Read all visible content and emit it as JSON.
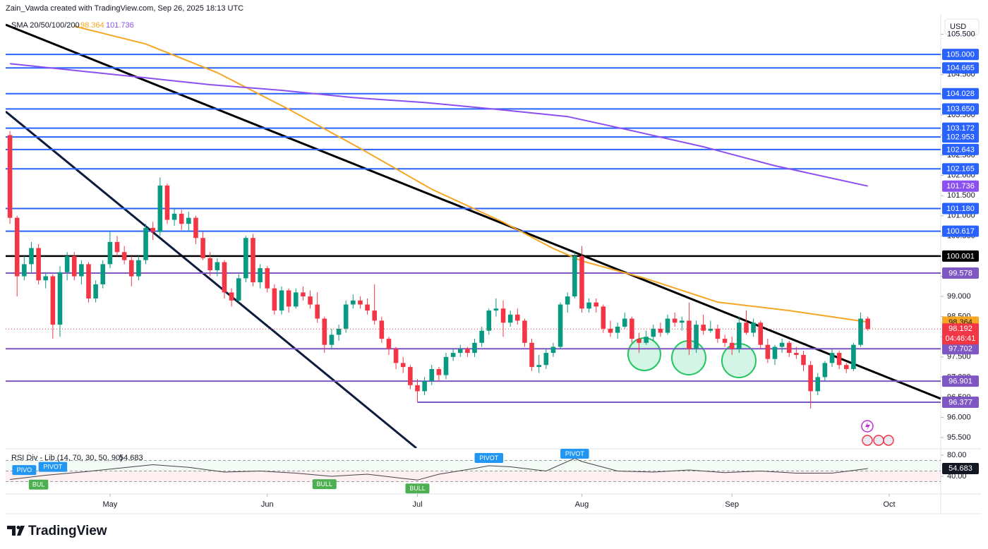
{
  "header": "Zain_Vawda created with TradingView.com, Sep 26, 2025 18:13 UTC",
  "currency": "USD",
  "footer": "TradingView",
  "chart_data": {
    "type": "candlestick",
    "up_color": "#089981",
    "down_color": "#f23645",
    "xlim": [
      -0.6,
      130.2
    ],
    "xticks": [
      {
        "value": 14,
        "label": "May"
      },
      {
        "value": 36,
        "label": "Jun"
      },
      {
        "value": 57,
        "label": "Jul"
      },
      {
        "value": 80,
        "label": "Aug"
      },
      {
        "value": 101,
        "label": "Sep"
      },
      {
        "value": 123,
        "label": "Oct"
      }
    ],
    "ylim": [
      95.24,
      105.86
    ],
    "yticks": [
      {
        "value": 95.5,
        "label": "95.500"
      },
      {
        "value": 96,
        "label": "96.000"
      },
      {
        "value": 96.5,
        "label": "96.500"
      },
      {
        "value": 97,
        "label": "97.000"
      },
      {
        "value": 97.5,
        "label": "97.500"
      },
      {
        "value": 98,
        "label": "98.000"
      },
      {
        "value": 98.5,
        "label": "98.500"
      },
      {
        "value": 99,
        "label": "99.000"
      },
      {
        "value": 99.5,
        "label": "99.500"
      },
      {
        "value": 100,
        "label": "100.000"
      },
      {
        "value": 100.5,
        "label": "100.500"
      },
      {
        "value": 101,
        "label": "101.000"
      },
      {
        "value": 101.5,
        "label": "101.500"
      },
      {
        "value": 102,
        "label": "102.000"
      },
      {
        "value": 102.5,
        "label": "102.500"
      },
      {
        "value": 103,
        "label": "103.000"
      },
      {
        "value": 103.5,
        "label": "103.500"
      },
      {
        "value": 104,
        "label": "104.000"
      },
      {
        "value": 104.5,
        "label": "104.500"
      },
      {
        "value": 105,
        "label": "105.000"
      },
      {
        "value": 105.5,
        "label": "105.500"
      }
    ],
    "candles": [
      [
        103.0,
        103.1,
        100.8,
        100.95
      ],
      [
        100.95,
        101.0,
        99.0,
        99.5
      ],
      [
        99.5,
        100.0,
        99.4,
        99.8
      ],
      [
        99.8,
        100.35,
        99.6,
        100.2
      ],
      [
        100.2,
        100.3,
        99.3,
        99.4
      ],
      [
        99.4,
        99.6,
        99.2,
        99.5
      ],
      [
        99.5,
        99.55,
        97.95,
        98.3
      ],
      [
        98.3,
        99.75,
        98.0,
        99.6
      ],
      [
        99.6,
        100.1,
        99.4,
        100.0
      ],
      [
        100.0,
        100.1,
        99.4,
        99.5
      ],
      [
        99.5,
        99.9,
        99.3,
        99.8
      ],
      [
        99.8,
        99.85,
        98.85,
        98.95
      ],
      [
        98.95,
        99.4,
        98.85,
        99.3
      ],
      [
        99.3,
        99.9,
        99.2,
        99.8
      ],
      [
        99.8,
        100.6,
        99.7,
        100.35
      ],
      [
        100.35,
        100.5,
        100.0,
        100.1
      ],
      [
        100.1,
        100.25,
        99.8,
        99.9
      ],
      [
        99.9,
        100.0,
        99.25,
        99.5
      ],
      [
        99.5,
        100.0,
        99.4,
        99.9
      ],
      [
        99.9,
        100.8,
        99.8,
        100.7
      ],
      [
        100.7,
        100.85,
        100.4,
        100.6
      ],
      [
        100.6,
        101.95,
        100.5,
        101.75
      ],
      [
        101.75,
        101.8,
        100.8,
        100.9
      ],
      [
        100.9,
        101.2,
        100.75,
        101.05
      ],
      [
        101.05,
        101.15,
        100.65,
        100.8
      ],
      [
        100.8,
        101.1,
        100.6,
        100.95
      ],
      [
        100.95,
        101.0,
        100.3,
        100.45
      ],
      [
        100.45,
        100.6,
        99.9,
        99.95
      ],
      [
        99.95,
        100.1,
        99.5,
        99.65
      ],
      [
        99.65,
        99.95,
        99.5,
        99.85
      ],
      [
        99.85,
        99.9,
        98.95,
        99.1
      ],
      [
        99.1,
        99.2,
        98.75,
        98.9
      ],
      [
        98.9,
        99.55,
        98.85,
        99.45
      ],
      [
        99.45,
        100.5,
        99.35,
        100.45
      ],
      [
        100.45,
        100.55,
        99.25,
        99.35
      ],
      [
        99.35,
        99.8,
        99.2,
        99.7
      ],
      [
        99.7,
        99.75,
        99.1,
        99.2
      ],
      [
        99.2,
        99.3,
        98.55,
        98.65
      ],
      [
        98.65,
        99.25,
        98.55,
        99.15
      ],
      [
        99.15,
        99.2,
        98.6,
        98.75
      ],
      [
        98.75,
        99.2,
        98.7,
        99.1
      ],
      [
        99.1,
        99.25,
        98.9,
        99.0
      ],
      [
        99.0,
        99.15,
        98.7,
        98.8
      ],
      [
        98.8,
        99.1,
        98.35,
        98.45
      ],
      [
        98.45,
        98.5,
        97.6,
        97.8
      ],
      [
        97.8,
        98.2,
        97.7,
        98.05
      ],
      [
        98.05,
        98.3,
        97.9,
        98.2
      ],
      [
        98.2,
        98.9,
        98.1,
        98.8
      ],
      [
        98.8,
        99.05,
        98.7,
        98.9
      ],
      [
        98.9,
        99.0,
        98.7,
        98.8
      ],
      [
        98.8,
        98.95,
        98.55,
        98.65
      ],
      [
        98.65,
        99.3,
        98.3,
        98.4
      ],
      [
        98.4,
        98.5,
        97.85,
        97.95
      ],
      [
        97.95,
        98.0,
        97.55,
        97.7
      ],
      [
        97.7,
        97.75,
        97.2,
        97.35
      ],
      [
        97.35,
        97.5,
        97.1,
        97.25
      ],
      [
        97.25,
        97.3,
        96.7,
        96.8
      ],
      [
        96.8,
        96.95,
        96.377,
        96.65
      ],
      [
        96.65,
        97.0,
        96.55,
        96.9
      ],
      [
        96.9,
        97.3,
        96.8,
        97.2
      ],
      [
        97.2,
        97.25,
        96.9,
        97.05
      ],
      [
        97.05,
        97.6,
        96.95,
        97.5
      ],
      [
        97.5,
        97.7,
        97.4,
        97.6
      ],
      [
        97.6,
        97.8,
        97.5,
        97.7
      ],
      [
        97.7,
        97.75,
        97.5,
        97.6
      ],
      [
        97.6,
        97.95,
        97.5,
        97.85
      ],
      [
        97.85,
        98.25,
        97.75,
        98.15
      ],
      [
        98.15,
        98.7,
        98.05,
        98.65
      ],
      [
        98.65,
        98.95,
        98.5,
        98.7
      ],
      [
        98.7,
        98.9,
        98.0,
        98.35
      ],
      [
        98.35,
        98.65,
        98.25,
        98.55
      ],
      [
        98.55,
        98.7,
        98.3,
        98.4
      ],
      [
        98.4,
        98.45,
        97.75,
        97.85
      ],
      [
        97.85,
        97.95,
        97.15,
        97.25
      ],
      [
        97.25,
        97.55,
        97.1,
        97.3
      ],
      [
        97.3,
        97.7,
        97.2,
        97.6
      ],
      [
        97.6,
        97.85,
        97.5,
        97.75
      ],
      [
        97.75,
        98.85,
        97.7,
        98.8
      ],
      [
        98.8,
        99.1,
        98.6,
        99.0
      ],
      [
        99.0,
        100.1,
        98.95,
        100.0
      ],
      [
        100.0,
        100.25,
        98.6,
        98.7
      ],
      [
        98.7,
        98.95,
        98.6,
        98.85
      ],
      [
        98.85,
        98.95,
        98.6,
        98.75
      ],
      [
        98.75,
        98.8,
        98.1,
        98.2
      ],
      [
        98.2,
        98.4,
        98.0,
        98.1
      ],
      [
        98.1,
        98.35,
        97.95,
        98.25
      ],
      [
        98.25,
        98.6,
        98.2,
        98.45
      ],
      [
        98.45,
        98.5,
        97.85,
        97.95
      ],
      [
        97.95,
        98.1,
        97.6,
        97.85
      ],
      [
        97.85,
        98.15,
        97.8,
        98.0
      ],
      [
        98.0,
        98.3,
        97.9,
        98.2
      ],
      [
        98.2,
        98.35,
        98.0,
        98.1
      ],
      [
        98.1,
        98.55,
        98.05,
        98.45
      ],
      [
        98.45,
        98.6,
        98.25,
        98.35
      ],
      [
        98.35,
        98.5,
        98.15,
        98.4
      ],
      [
        98.4,
        98.85,
        97.55,
        97.7
      ],
      [
        97.7,
        98.4,
        97.6,
        98.3
      ],
      [
        98.3,
        98.55,
        98.05,
        98.15
      ],
      [
        98.15,
        98.4,
        98.1,
        98.2
      ],
      [
        98.2,
        98.3,
        97.85,
        97.95
      ],
      [
        97.95,
        98.05,
        97.75,
        97.85
      ],
      [
        97.85,
        98.0,
        97.55,
        97.7
      ],
      [
        97.7,
        98.5,
        97.6,
        98.35
      ],
      [
        98.35,
        98.65,
        98.05,
        98.1
      ],
      [
        98.1,
        98.45,
        98.0,
        98.35
      ],
      [
        98.35,
        98.4,
        97.7,
        97.8
      ],
      [
        97.8,
        97.95,
        97.35,
        97.45
      ],
      [
        97.45,
        97.8,
        97.3,
        97.75
      ],
      [
        97.75,
        97.95,
        97.6,
        97.85
      ],
      [
        97.85,
        97.9,
        97.5,
        97.6
      ],
      [
        97.6,
        97.75,
        97.45,
        97.55
      ],
      [
        97.55,
        97.65,
        97.15,
        97.3
      ],
      [
        97.3,
        97.4,
        96.22,
        96.65
      ],
      [
        96.65,
        97.1,
        96.55,
        97.0
      ],
      [
        97.0,
        97.4,
        96.9,
        97.35
      ],
      [
        97.35,
        97.7,
        97.25,
        97.6
      ],
      [
        97.6,
        97.65,
        97.2,
        97.3
      ],
      [
        97.3,
        97.35,
        97.1,
        97.2
      ],
      [
        97.2,
        97.85,
        97.15,
        97.8
      ],
      [
        97.8,
        98.6,
        97.75,
        98.45
      ],
      [
        98.45,
        98.5,
        98.15,
        98.192
      ]
    ],
    "countdown": "04:46:41",
    "levels": [
      {
        "value": 105,
        "label": "105.000",
        "color": "#2962ff"
      },
      {
        "value": 104.665,
        "label": "104.665",
        "color": "#2962ff"
      },
      {
        "value": 104.028,
        "label": "104.028",
        "color": "#2962ff"
      },
      {
        "value": 103.65,
        "label": "103.650",
        "color": "#2962ff"
      },
      {
        "value": 103.172,
        "label": "103.172",
        "color": "#2962ff"
      },
      {
        "value": 102.953,
        "label": "102.953",
        "color": "#2962ff"
      },
      {
        "value": 102.643,
        "label": "102.643",
        "color": "#2962ff"
      },
      {
        "value": 102.165,
        "label": "102.165",
        "color": "#2962ff"
      },
      {
        "value": 101.18,
        "label": "101.180",
        "color": "#2962ff"
      },
      {
        "value": 100.617,
        "label": "100.617",
        "color": "#2962ff"
      },
      {
        "value": 100.001,
        "label": "100.001",
        "color": "#000000"
      },
      {
        "value": 99.578,
        "label": "99.578",
        "color": "#7e57c2"
      },
      {
        "value": 97.702,
        "label": "97.702",
        "color": "#7e57c2"
      },
      {
        "value": 96.901,
        "label": "96.901",
        "color": "#7e57c2"
      },
      {
        "value": 96.377,
        "label": "96.377",
        "color": "#7e57c2",
        "start": 57
      }
    ],
    "sma": {
      "label": "SMA 20/50/100/200",
      "lines": [
        {
          "color": "#f5a623",
          "x": [
            9,
            19,
            29,
            39,
            49,
            59,
            69,
            76,
            80,
            89,
            99,
            109,
            120
          ],
          "values": [
            105.7,
            105.26,
            104.55,
            103.64,
            102.67,
            101.66,
            100.84,
            100.19,
            99.88,
            99.44,
            98.86,
            98.65,
            98.364
          ]
        },
        {
          "color": "#8c4ff0",
          "x": [
            0,
            19,
            28,
            38,
            48,
            58,
            68,
            78,
            87,
            97,
            107,
            120
          ],
          "values": [
            104.77,
            104.42,
            104.25,
            104.11,
            103.93,
            103.81,
            103.64,
            103.46,
            103.11,
            102.71,
            102.24,
            101.736
          ]
        }
      ]
    },
    "rsi": {
      "label": "RSI Div - Lib (14, 70, 30, 50, 90)",
      "ylim": [
        6.67,
        90.67
      ],
      "yticks": [
        {
          "value": 80,
          "label": "80.00"
        },
        {
          "value": 40,
          "label": "40.00"
        }
      ],
      "bands": [
        70,
        50,
        30
      ],
      "color": "#444444",
      "x": [
        0,
        5,
        10,
        15,
        20,
        25,
        30,
        35,
        40,
        45,
        50,
        55,
        57,
        60,
        65,
        67,
        70,
        75,
        79,
        80,
        85,
        90,
        95,
        100,
        105,
        110,
        115,
        120
      ],
      "values": [
        34,
        42,
        48,
        55,
        62,
        57,
        48,
        50,
        46,
        40,
        44,
        36,
        33,
        44,
        55,
        60,
        58,
        50,
        74,
        68,
        50,
        48,
        52,
        47,
        50,
        46,
        46,
        54.683
      ],
      "markers": [
        {
          "text": "PIVO",
          "x": 2,
          "color": "#2196f3"
        },
        {
          "text": "BUL",
          "x": 4,
          "color": "#4caf50"
        },
        {
          "text": "PIVOT",
          "x": 6,
          "color": "#2196f3"
        },
        {
          "text": "BULL",
          "x": 44,
          "color": "#4caf50"
        },
        {
          "text": "BULL",
          "x": 57,
          "color": "#4caf50"
        },
        {
          "text": "PIVOT",
          "x": 67,
          "color": "#2196f3"
        },
        {
          "text": "PIVOT",
          "x": 79,
          "color": "#2196f3"
        }
      ]
    }
  }
}
